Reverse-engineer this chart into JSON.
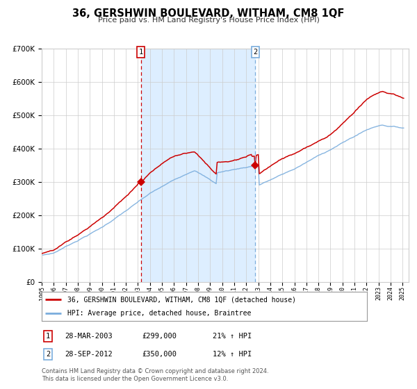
{
  "title": "36, GERSHWIN BOULEVARD, WITHAM, CM8 1QF",
  "subtitle": "Price paid vs. HM Land Registry's House Price Index (HPI)",
  "legend_line1": "36, GERSHWIN BOULEVARD, WITHAM, CM8 1QF (detached house)",
  "legend_line2": "HPI: Average price, detached house, Braintree",
  "sale1_label": "1",
  "sale1_date": "28-MAR-2003",
  "sale1_price": "£299,000",
  "sale1_hpi": "21% ↑ HPI",
  "sale1_year": 2003.24,
  "sale1_value": 299000,
  "sale2_label": "2",
  "sale2_date": "28-SEP-2012",
  "sale2_price": "£350,000",
  "sale2_hpi": "12% ↑ HPI",
  "sale2_year": 2012.75,
  "sale2_value": 350000,
  "footnote1": "Contains HM Land Registry data © Crown copyright and database right 2024.",
  "footnote2": "This data is licensed under the Open Government Licence v3.0.",
  "ylim": [
    0,
    700000
  ],
  "red_color": "#cc0000",
  "blue_color": "#7aaddd",
  "shade_color": "#ddeeff",
  "grid_color": "#cccccc",
  "background_color": "#ffffff",
  "sale1_dashed_color": "#cc0000",
  "sale2_dashed_color": "#7aaddd",
  "xstart": 1995,
  "xend": 2025
}
